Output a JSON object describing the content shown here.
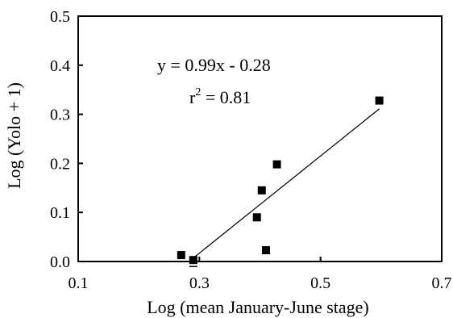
{
  "chart_data": {
    "type": "scatter",
    "title": "",
    "xlabel": "Log (mean January-June stage)",
    "ylabel": "Log (Yolo + 1)",
    "xlim": [
      0.1,
      0.7
    ],
    "ylim": [
      0.0,
      0.5
    ],
    "xticks": [
      0.1,
      0.3,
      0.5,
      0.7
    ],
    "yticks": [
      0.0,
      0.1,
      0.2,
      0.3,
      0.4,
      0.5
    ],
    "xtick_labels": [
      "0.1",
      "0.3",
      "0.5",
      "0.7"
    ],
    "ytick_labels": [
      "0.0",
      "0.1",
      "0.2",
      "0.3",
      "0.4",
      "0.5"
    ],
    "grid": false,
    "series": [
      {
        "marker": "square",
        "color": "#000000",
        "points": [
          {
            "x": 0.27,
            "y": 0.013
          },
          {
            "x": 0.29,
            "y": 0.003
          },
          {
            "x": 0.395,
            "y": 0.09
          },
          {
            "x": 0.403,
            "y": 0.145
          },
          {
            "x": 0.41,
            "y": 0.023
          },
          {
            "x": 0.428,
            "y": 0.198
          },
          {
            "x": 0.597,
            "y": 0.328
          }
        ]
      }
    ],
    "trendline": {
      "x_start": 0.29,
      "x_end": 0.597,
      "slope": 0.99,
      "intercept": -0.28
    },
    "annotations": {
      "equation": "y = 0.99x - 0.28",
      "r2_base": "r",
      "r2_sup": "2",
      "r2_rest": " = 0.81"
    }
  }
}
